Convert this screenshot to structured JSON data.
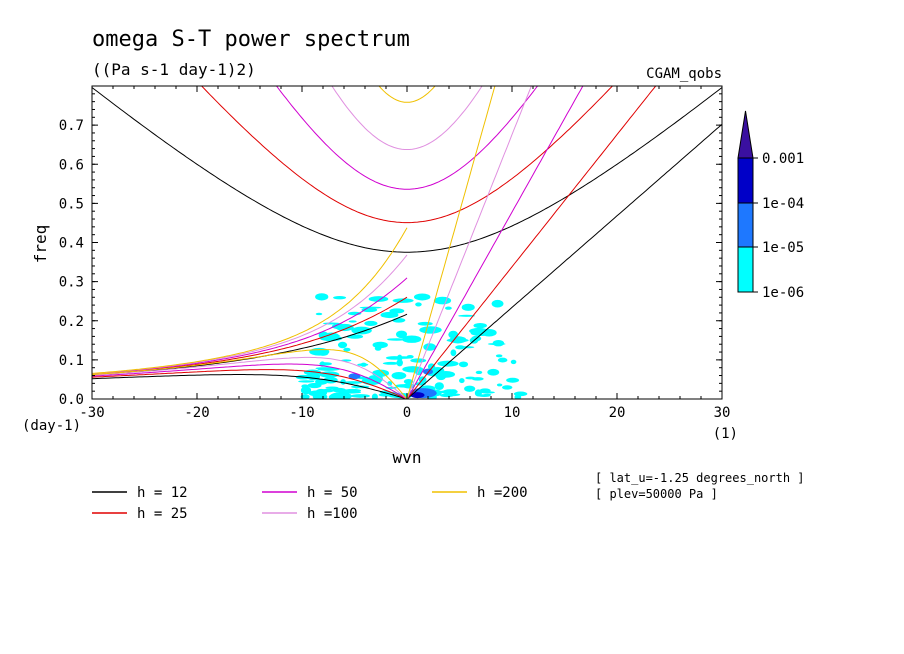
{
  "chart_data": {
    "type": "line",
    "title": "omega S-T power spectrum",
    "subtitle": "((Pa s-1 day-1)2)",
    "dataset": "CGAM_qobs",
    "xlabel": "wvn",
    "ylabel": "freq",
    "y_unit": "(day-1)",
    "x_unit": "(1)",
    "xlim": [
      -30,
      30
    ],
    "ylim": [
      0,
      0.8
    ],
    "xticks": [
      "-30",
      "-20",
      "-10",
      "0",
      "10",
      "20",
      "30"
    ],
    "yticks": [
      "0.0",
      "0.1",
      "0.2",
      "0.3",
      "0.4",
      "0.5",
      "0.6",
      "0.7"
    ],
    "series": [
      {
        "name": "h = 12",
        "color": "#000000",
        "equivalent_depth": 12
      },
      {
        "name": "h = 25",
        "color": "#e00000",
        "equivalent_depth": 25
      },
      {
        "name": "h = 50",
        "color": "#d000d0",
        "equivalent_depth": 50
      },
      {
        "name": "h =100",
        "color": "#e090e0",
        "equivalent_depth": 100
      },
      {
        "name": "h =200",
        "color": "#f0c000",
        "equivalent_depth": 200
      }
    ],
    "colorbar": {
      "labels": [
        "0.001",
        "1e-04",
        "1e-05",
        "1e-06"
      ],
      "colors": [
        "#3a10a0",
        "#0000c8",
        "#1e78ff",
        "#00ffff"
      ]
    },
    "annotations": [
      "[ lat_u=-1.25 degrees_north ]",
      "[ plev=50000 Pa ]"
    ],
    "grid": false,
    "legend_position": "bottom"
  }
}
